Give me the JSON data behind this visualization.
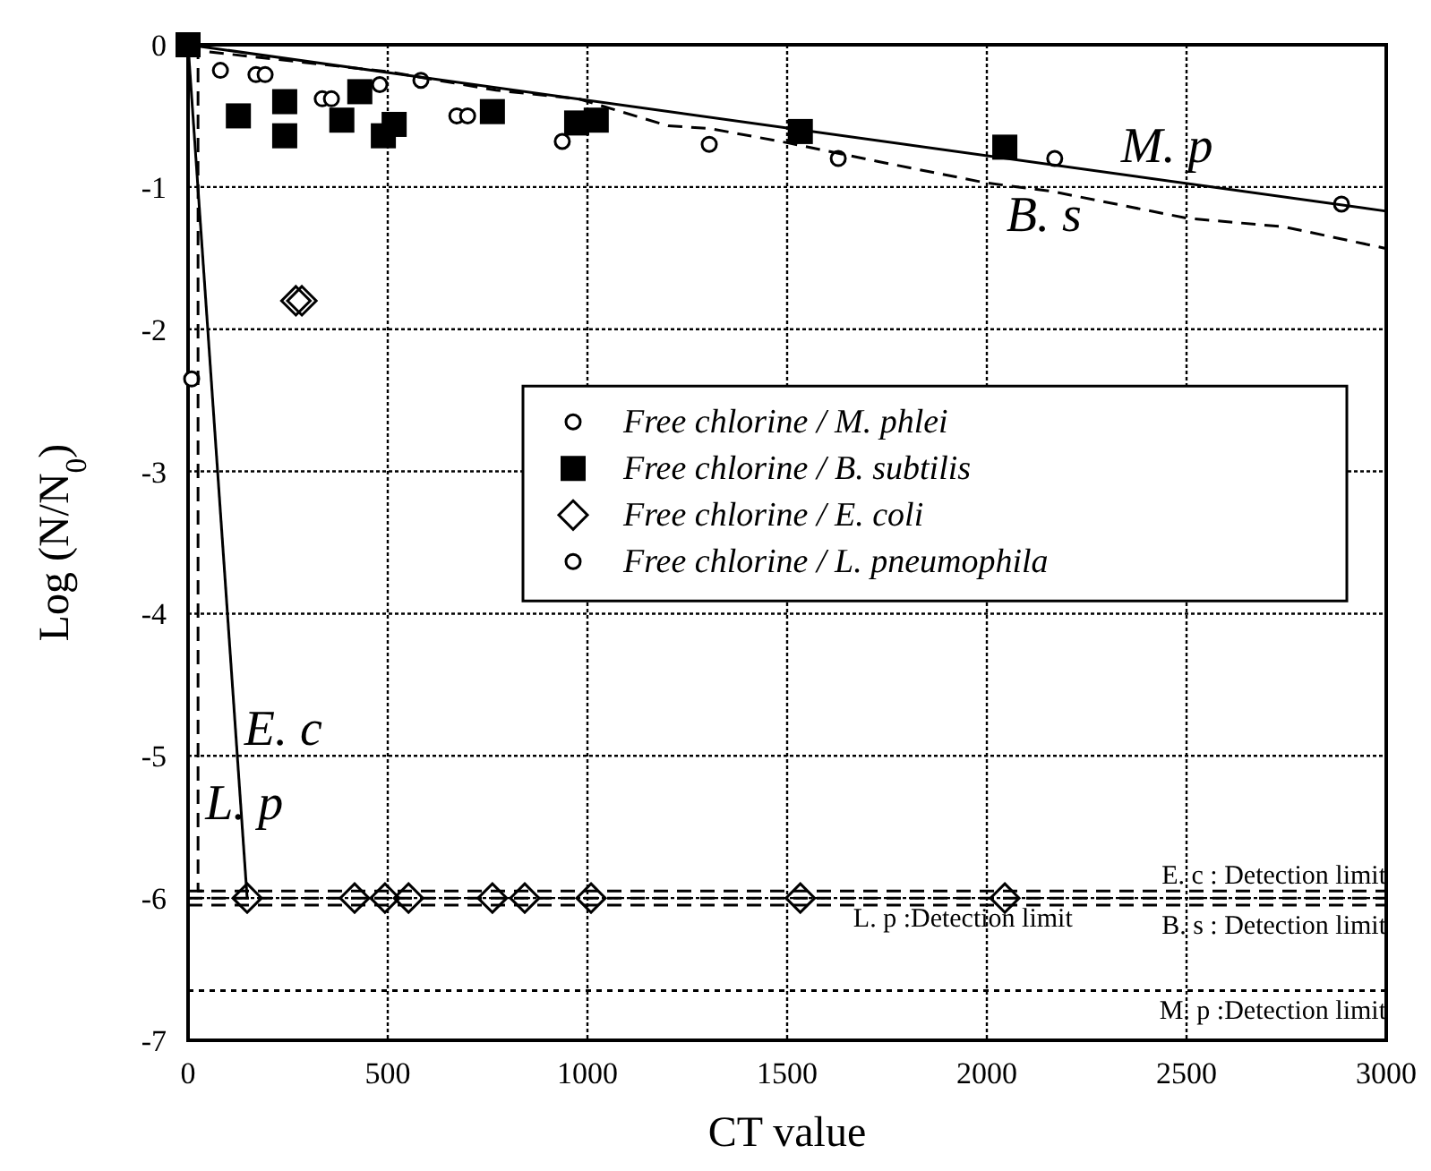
{
  "chart_data": {
    "type": "scatter",
    "xlabel": "CT value",
    "ylabel": "Log (N/N$_{0}$)",
    "xlim": [
      0,
      3000
    ],
    "ylim": [
      -7,
      0
    ],
    "xticks": [
      0,
      500,
      1000,
      1500,
      2000,
      2500,
      3000
    ],
    "yticks": [
      -7,
      -6,
      -5,
      -4,
      -3,
      -2,
      -1,
      0
    ],
    "grid": true,
    "legend": "right",
    "series": [
      {
        "name": "Free chlorine / M. phlei",
        "color": "#000000",
        "marker": "circle",
        "x": [
          81,
          170,
          193,
          336,
          359,
          480,
          583,
          673,
          700,
          937,
          1305,
          1628,
          2170,
          2888
        ],
        "values": [
          -0.18,
          -0.21,
          -0.21,
          -0.38,
          -0.38,
          -0.28,
          -0.25,
          -0.5,
          -0.5,
          -0.68,
          -0.7,
          -0.8,
          -0.8,
          -1.12
        ]
      },
      {
        "name": "Free chlorine / B. subtilis",
        "color": "#000000",
        "marker": "square",
        "x": [
          0,
          126,
          242,
          242,
          385,
          430,
          489,
          516,
          762,
          973,
          1022,
          1533,
          2045
        ],
        "values": [
          0,
          -0.5,
          -0.4,
          -0.64,
          -0.53,
          -0.33,
          -0.64,
          -0.56,
          -0.47,
          -0.55,
          -0.53,
          -0.61,
          -0.72
        ]
      },
      {
        "name": "Free chlorine / E. coli",
        "color": "#000000",
        "marker": "diamond",
        "x": [
          270,
          285,
          148,
          417,
          493,
          552,
          762,
          843,
          1009,
          1533,
          2045
        ],
        "values": [
          -1.8,
          -1.8,
          -6,
          -6,
          -6,
          -6,
          -6,
          -6,
          -6,
          -6,
          -6
        ]
      },
      {
        "name": "Free chlorine / L. pneumophila",
        "color": "#000000",
        "marker": "circle",
        "x": [
          9
        ],
        "values": [
          -2.35
        ]
      },
      {
        "type": "line",
        "color": "#000000",
        "line_style": "solid",
        "x": [
          0,
          3000
        ],
        "values": [
          0,
          -1.17
        ]
      },
      {
        "type": "line",
        "color": "#000000",
        "line_style": "dashed",
        "x": [
          0,
          20,
          502,
          771,
          977,
          1202,
          1309,
          1502,
          1726,
          1996,
          2161,
          2502,
          2744,
          2996
        ],
        "values": [
          0,
          -0.04,
          -0.19,
          -0.32,
          -0.38,
          -0.57,
          -0.59,
          -0.69,
          -0.82,
          -0.97,
          -1.03,
          -1.22,
          -1.28,
          -1.43
        ]
      },
      {
        "type": "line",
        "color": "#000000",
        "line_style": "solid",
        "x": [
          0,
          148
        ],
        "values": [
          0,
          -6
        ]
      },
      {
        "type": "line",
        "color": "#000000",
        "line_style": "dashed",
        "x": [
          25,
          25,
          60
        ],
        "values": [
          0,
          -5.95,
          -5.95
        ]
      }
    ],
    "annotations": [
      {
        "text": "M. p",
        "x": 2318,
        "y": -0.9
      },
      {
        "text": "B. s",
        "x": 2031,
        "y": -0.97
      },
      {
        "text": "E. c",
        "x": 123,
        "y": -5
      },
      {
        "text": "L. p",
        "x": 25,
        "y": -5.1
      }
    ],
    "ref_lines": [
      {
        "axis": "y",
        "value": -5.95,
        "label": "E. c : Detection limit",
        "line_style": "dashed"
      },
      {
        "axis": "y",
        "value": -6.05,
        "label": "B. s : Detection limit",
        "line_style": "dashed"
      },
      {
        "axis": "y",
        "value": -6,
        "label": "L. p :Detection limit",
        "line_style": "dashed"
      },
      {
        "axis": "y",
        "value": -6.65,
        "label": "M. p :Detection limit",
        "line_style": "dotted"
      }
    ]
  }
}
